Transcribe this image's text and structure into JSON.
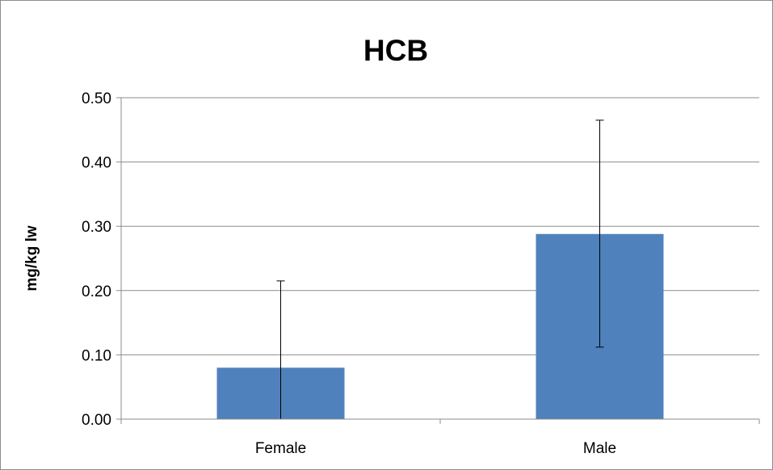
{
  "chart_data": {
    "type": "bar",
    "title": "HCB",
    "xlabel": "",
    "ylabel": "mg/kg lw",
    "categories": [
      "Female",
      "Male"
    ],
    "values": [
      0.08,
      0.288
    ],
    "error_bars": [
      {
        "low": 0.0,
        "high": 0.215
      },
      {
        "low": 0.112,
        "high": 0.465
      }
    ],
    "ylim": [
      0,
      0.5
    ],
    "yticks": [
      "0.00",
      "0.10",
      "0.20",
      "0.30",
      "0.40",
      "0.50"
    ],
    "grid": true,
    "legend": "none",
    "colors": {
      "bar": "#4f81bd",
      "gridline": "#8c8c8c",
      "axis": "#8c8c8c",
      "error_bar": "#000000"
    }
  }
}
